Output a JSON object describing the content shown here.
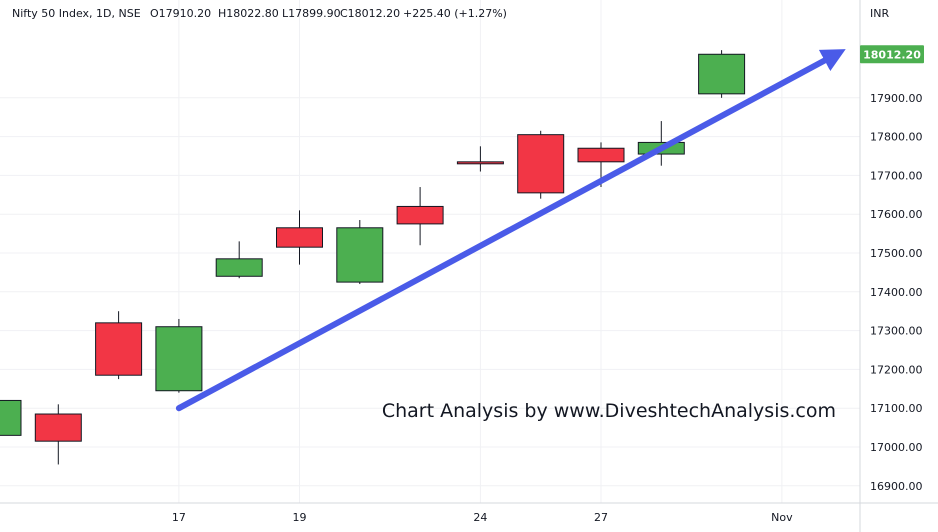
{
  "chart_data": {
    "type": "candlestick",
    "legend": {
      "symbol": "Nifty 50 Index, 1D, NSE",
      "open": "O17910.20",
      "high": "H18022.80",
      "low": "L17899.90",
      "close": "C18012.20",
      "change": "+225.40 (+1.27%)"
    },
    "currency": "INR",
    "last_price_label": "18012.20",
    "y_ticks": [
      16900,
      17000,
      17100,
      17200,
      17300,
      17400,
      17500,
      17600,
      17700,
      17800,
      17900
    ],
    "y_tick_labels": [
      "16900.00",
      "17000.00",
      "17100.00",
      "17200.00",
      "17300.00",
      "17400.00",
      "17500.00",
      "17600.00",
      "17700.00",
      "17800.00",
      "17900.00"
    ],
    "x_labels": [
      {
        "index": 3,
        "label": "17"
      },
      {
        "index": 5,
        "label": "19"
      },
      {
        "index": 8,
        "label": "24"
      },
      {
        "index": 10,
        "label": "27"
      },
      {
        "index": 13,
        "label": "Nov"
      }
    ],
    "candles": [
      {
        "open": 17030,
        "high": 17125,
        "low": 17025,
        "close": 17120
      },
      {
        "open": 17085,
        "high": 17110,
        "low": 16955,
        "close": 17015
      },
      {
        "open": 17320,
        "high": 17350,
        "low": 17175,
        "close": 17185
      },
      {
        "open": 17145,
        "high": 17330,
        "low": 17140,
        "close": 17310
      },
      {
        "open": 17440,
        "high": 17530,
        "low": 17435,
        "close": 17485
      },
      {
        "open": 17565,
        "high": 17610,
        "low": 17470,
        "close": 17515
      },
      {
        "open": 17425,
        "high": 17585,
        "low": 17420,
        "close": 17565
      },
      {
        "open": 17620,
        "high": 17670,
        "low": 17520,
        "close": 17575
      },
      {
        "open": 17735,
        "high": 17775,
        "low": 17710,
        "close": 17730
      },
      {
        "open": 17805,
        "high": 17815,
        "low": 17640,
        "close": 17655
      },
      {
        "open": 17770,
        "high": 17785,
        "low": 17670,
        "close": 17735
      },
      {
        "open": 17755,
        "high": 17840,
        "low": 17725,
        "close": 17785
      },
      {
        "open": 17910.2,
        "high": 18022.8,
        "low": 17899.9,
        "close": 18012.2
      }
    ],
    "trendline": {
      "from": {
        "index": 3,
        "price": 17100
      },
      "to": {
        "index": 14,
        "price": 18020
      }
    },
    "colors": {
      "up": "#4caf50",
      "down": "#f23645",
      "trendline": "#4a5be8",
      "price_tag": "#4caf50"
    },
    "grid": true,
    "annotation": "Chart Analysis by www.DiveshtechAnalysis.com"
  }
}
